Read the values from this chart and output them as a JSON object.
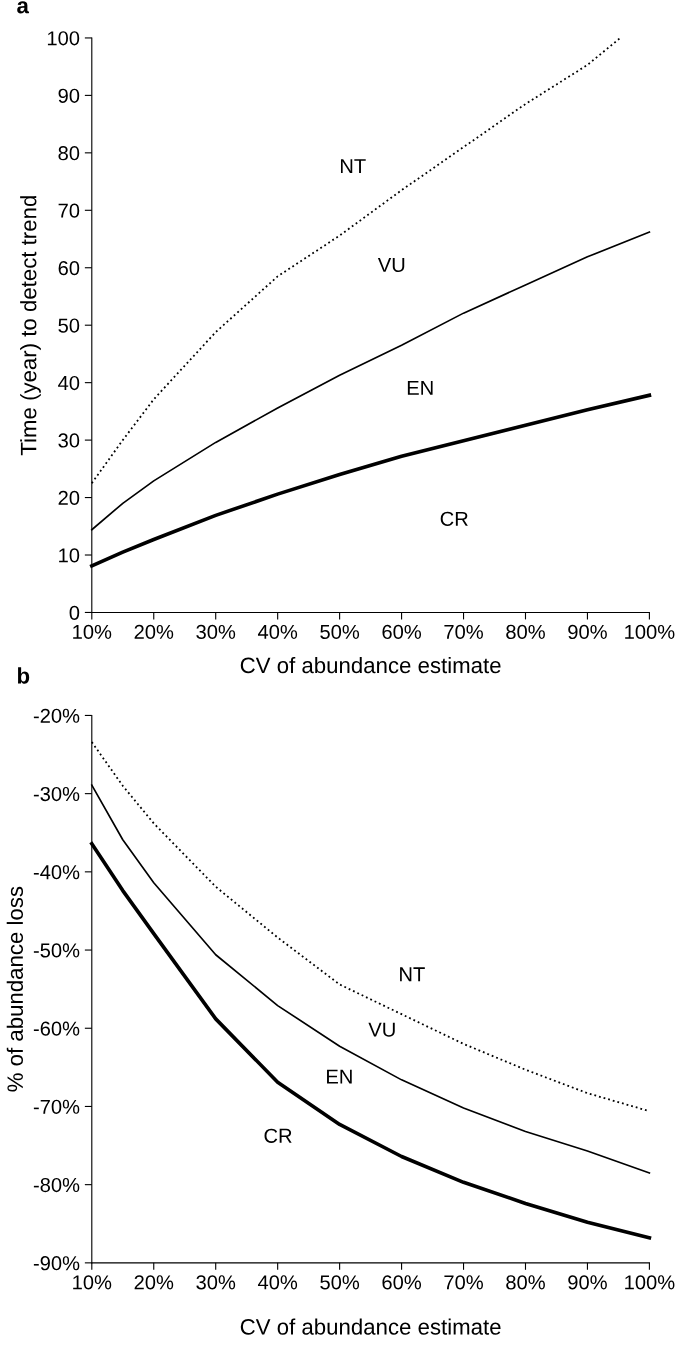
{
  "chart_data": [
    {
      "type": "line",
      "title": "a",
      "xlabel": "CV of abundance estimate",
      "ylabel": "Time (year) to detect trend",
      "x": [
        10,
        15,
        20,
        30,
        40,
        50,
        60,
        70,
        80,
        90,
        100
      ],
      "series": [
        {
          "color": "#000000",
          "line_style": "dotted",
          "x": [
            10,
            15,
            20,
            30,
            40,
            50,
            60,
            70,
            80,
            90,
            95.3
          ],
          "values": [
            22.5,
            30,
            37.1,
            48.8,
            58.5,
            65.6,
            73.5,
            81,
            88.5,
            95.3,
            100
          ]
        },
        {
          "color": "#000000",
          "line_style": "solid",
          "values": [
            14.4,
            19,
            22.9,
            29.6,
            35.6,
            41.3,
            46.5,
            52.1,
            57,
            61.9,
            66.2
          ]
        },
        {
          "color": "#000000",
          "line_style": "solid",
          "values": [
            8.1,
            10.5,
            12.7,
            16.9,
            20.6,
            24,
            27.2,
            29.9,
            32.6,
            35.3,
            37.8
          ]
        }
      ],
      "xlim": [
        10,
        100
      ],
      "ylim": [
        0,
        100
      ],
      "xticks": [
        {
          "value": 10,
          "label": "10%"
        },
        {
          "value": 20,
          "label": "20%"
        },
        {
          "value": 30,
          "label": "30%"
        },
        {
          "value": 40,
          "label": "40%"
        },
        {
          "value": 50,
          "label": "50%"
        },
        {
          "value": 60,
          "label": "60%"
        },
        {
          "value": 70,
          "label": "70%"
        },
        {
          "value": 80,
          "label": "80%"
        },
        {
          "value": 90,
          "label": "90%"
        },
        {
          "value": 100,
          "label": "100%"
        }
      ],
      "yticks": [
        0,
        10,
        20,
        30,
        40,
        50,
        60,
        70,
        80,
        90,
        100
      ],
      "annotations": [
        "NT",
        "VU",
        "EN",
        "CR"
      ],
      "grid": false,
      "legend": false
    },
    {
      "type": "line",
      "title": "b",
      "xlabel": "CV of abundance estimate",
      "ylabel": "% of abundance loss",
      "x": [
        10,
        15,
        20,
        30,
        40,
        50,
        60,
        70,
        80,
        90,
        100
      ],
      "series": [
        {
          "color": "#000000",
          "line_style": "dotted",
          "values": [
            -23.4,
            -29,
            -33.8,
            -41.9,
            -48.4,
            -54.4,
            -58.2,
            -62,
            -65.3,
            -68.3,
            -70.6
          ]
        },
        {
          "color": "#000000",
          "line_style": "solid",
          "values": [
            -28.9,
            -35.9,
            -41.4,
            -50.6,
            -57.1,
            -62.3,
            -66.6,
            -70.2,
            -73.2,
            -75.7,
            -78.5
          ]
        },
        {
          "color": "#000000",
          "line_style": "solid",
          "values": [
            -36.4,
            -42.4,
            -47.9,
            -58.8,
            -66.9,
            -72.3,
            -76.4,
            -79.7,
            -82.4,
            -84.8,
            -86.8
          ]
        }
      ],
      "xlim": [
        10,
        100
      ],
      "ylim": [
        -90,
        -20
      ],
      "xticks": [
        {
          "value": 10,
          "label": "10%"
        },
        {
          "value": 20,
          "label": "20%"
        },
        {
          "value": 30,
          "label": "30%"
        },
        {
          "value": 40,
          "label": "40%"
        },
        {
          "value": 50,
          "label": "50%"
        },
        {
          "value": 60,
          "label": "60%"
        },
        {
          "value": 70,
          "label": "70%"
        },
        {
          "value": 80,
          "label": "80%"
        },
        {
          "value": 90,
          "label": "90%"
        },
        {
          "value": 100,
          "label": "100%"
        }
      ],
      "yticks": [
        {
          "value": -90,
          "label": "-90%"
        },
        {
          "value": -80,
          "label": "-80%"
        },
        {
          "value": -70,
          "label": "-70%"
        },
        {
          "value": -60,
          "label": "-60%"
        },
        {
          "value": -50,
          "label": "-50%"
        },
        {
          "value": -40,
          "label": "-40%"
        },
        {
          "value": -30,
          "label": "-30%"
        },
        {
          "value": -20,
          "label": "-20%"
        }
      ],
      "annotations": [
        "NT",
        "VU",
        "EN",
        "CR"
      ],
      "grid": false,
      "legend": false
    }
  ]
}
